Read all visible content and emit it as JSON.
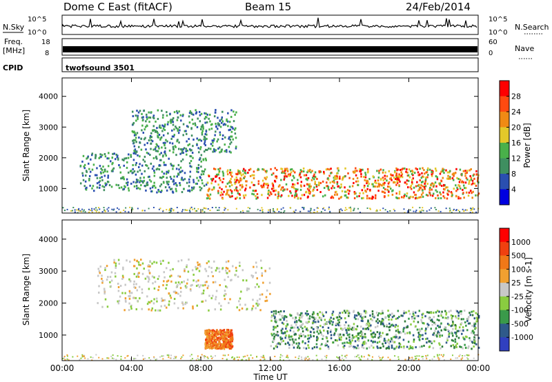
{
  "chart_data": {
    "type": "heatmap",
    "header": {
      "station": "Dome C East (fitACF)",
      "beam": "Beam 15",
      "date": "24/Feb/2014"
    },
    "summary": {
      "nsky_label": "N.Sky",
      "nsky_ticks": [
        "10^5",
        "10^0"
      ],
      "nsearch_label": "N.Search",
      "nsearch_ticks": [
        "10^5",
        "10^0"
      ],
      "freq_label": "Freq.",
      "freq_unit": "[MHz]",
      "freq_ticks": [
        "18",
        "8"
      ],
      "nave_label": "Nave",
      "nave_ticks": [
        "60",
        "0"
      ],
      "cpid_label": "CPID",
      "cpid_name": "twofsound 3501"
    },
    "x_axis": {
      "label": "Time UT",
      "ticks": [
        "00:00",
        "04:00",
        "08:00",
        "12:00",
        "16:00",
        "20:00",
        "00:00"
      ],
      "range_hours": [
        0,
        24
      ]
    },
    "panels": [
      {
        "id": "power",
        "ylabel": "Slant Range [km]",
        "yticks": [
          1000,
          2000,
          3000,
          4000
        ],
        "ylim": [
          200,
          4600
        ],
        "colorbar": {
          "label": "Power [dB]",
          "ticks": [
            "28",
            "24",
            "20",
            "16",
            "12",
            "8",
            "4"
          ],
          "colors": [
            "#0000e0",
            "#2a4fb0",
            "#3f8f60",
            "#49b04a",
            "#e3c82a",
            "#f08a14",
            "#ff4a10",
            "#ff0000"
          ]
        },
        "features": [
          {
            "from_hour": 8.3,
            "to_hour": 24,
            "range_km": [
              700,
              1700
            ],
            "level": "strong"
          },
          {
            "from_hour": 1,
            "to_hour": 8.3,
            "range_km": [
              900,
              2200
            ],
            "level": "weak"
          },
          {
            "from_hour": 4,
            "to_hour": 10,
            "range_km": [
              2200,
              3600
            ],
            "level": "weak"
          }
        ]
      },
      {
        "id": "velocity",
        "ylabel": "Slant Range [km]",
        "yticks": [
          1000,
          2000,
          3000,
          4000
        ],
        "ylim": [
          200,
          4600
        ],
        "colorbar": {
          "label": "Velocity [m s-1]",
          "ticks": [
            "1000",
            "500",
            "100",
            "25",
            "-25",
            "-100",
            "-500",
            "-1000"
          ],
          "colors": [
            "#3040c0",
            "#2f5a8a",
            "#3a9a4a",
            "#8acc40",
            "#c8c8c8",
            "#f0a030",
            "#f07818",
            "#f04010",
            "#ff0000"
          ]
        },
        "features": [
          {
            "from_hour": 8.2,
            "to_hour": 9.8,
            "range_km": [
              600,
              1200
            ],
            "level": "approaching"
          },
          {
            "from_hour": 12,
            "to_hour": 24,
            "range_km": [
              600,
              1800
            ],
            "level": "receding"
          },
          {
            "from_hour": 2,
            "to_hour": 12,
            "range_km": [
              1800,
              3400
            ],
            "level": "near-zero"
          }
        ]
      }
    ],
    "grid": false,
    "legend": "colorbars right"
  }
}
